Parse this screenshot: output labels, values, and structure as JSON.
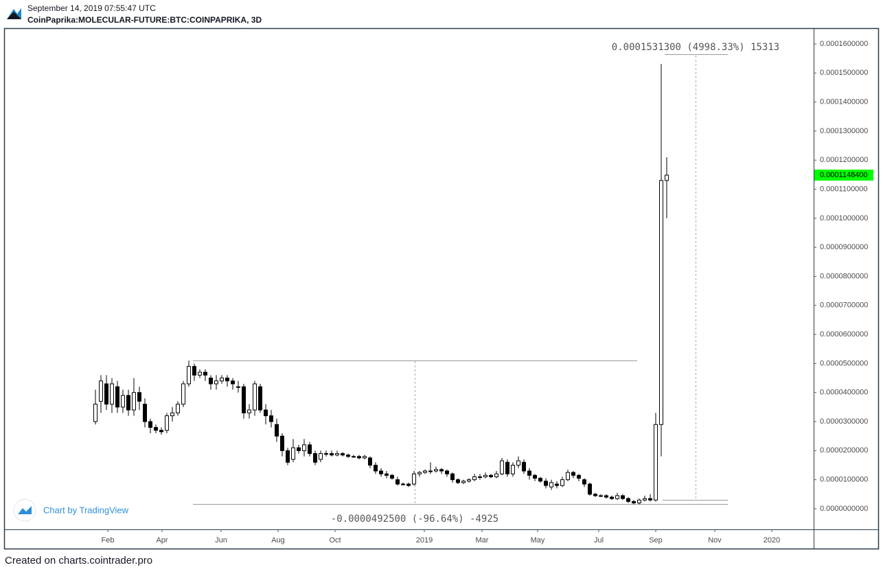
{
  "chart_data": {
    "type": "candlestick",
    "timestamp": "September 14, 2019 07:55:47 UTC",
    "title": "CoinPaprika:MOLECULAR-FUTURE:BTC:COINPAPRIKA, 3D",
    "branding": "Chart by TradingView",
    "footer": "Created on charts.cointrader.pro",
    "annotations": [
      "0.0001531300 (4998.33%) 15313",
      "-0.0000492500 (-96.64%) -4925"
    ],
    "up_color": "#ffffff",
    "down_color": "#000000",
    "last_price": {
      "value": 0.00011484,
      "label": "0.0001148400"
    },
    "last_price_color": "#00ff00",
    "open": [
      3e-05,
      3.7e-05,
      4.3e-05,
      3.6e-05,
      4.2e-05,
      3.5e-05,
      3.9e-05,
      3.4e-05,
      4e-05,
      3.6e-05,
      3e-05,
      2.8e-05,
      2.7e-05,
      2.7e-05,
      3.2e-05,
      3.3e-05,
      3.6e-05,
      4.3e-05,
      4.9e-05,
      4.6e-05,
      4.7e-05,
      4.5e-05,
      4.3e-05,
      4.4e-05,
      4.5e-05,
      4.4e-05,
      4.2e-05,
      4.2e-05,
      3.3e-05,
      3.4e-05,
      4.2e-05,
      3.4e-05,
      3.2e-05,
      2.9e-05,
      2.5e-05,
      2e-05,
      1.7e-05,
      2.1e-05,
      2e-05,
      2.2e-05,
      1.9e-05,
      1.7e-05,
      1.9e-05,
      1.9e-05,
      1.85e-05,
      1.9e-05,
      1.85e-05,
      1.8e-05,
      1.8e-05,
      1.75e-05,
      1.75e-05,
      1.5e-05,
      1.3e-05,
      1.2e-05,
      1.15e-05,
      1e-05,
      8.5e-06,
      8.5e-06,
      8.5e-06,
      1.2e-05,
      1.25e-05,
      1.3e-05,
      1.3e-05,
      1.35e-05,
      1.3e-05,
      1.2e-05,
      1e-05,
      9e-06,
      9.5e-06,
      1e-05,
      1.1e-05,
      1.1e-05,
      1.15e-05,
      1.1e-05,
      1.2e-05,
      1.6e-05,
      1.2e-05,
      1.5e-05,
      1.6e-05,
      1.3e-05,
      1.15e-05,
      1.05e-05,
      9.5e-06,
      7.5e-06,
      8.5e-06,
      8e-06,
      1e-05,
      1.25e-05,
      1.15e-05,
      1e-05,
      8.5e-06,
      5e-06,
      4.5e-06,
      4.5e-06,
      4e-06,
      3.5e-06,
      4.5e-06,
      3.5e-06,
      2.5e-06,
      2e-06,
      3e-06,
      3.5e-06,
      3e-06,
      2.9e-05,
      0.000113
    ],
    "high": [
      4.1e-05,
      4.6e-05,
      4.6e-05,
      4.5e-05,
      4.4e-05,
      4.1e-05,
      4.1e-05,
      4.5e-05,
      4.2e-05,
      3.8e-05,
      3.1e-05,
      2.9e-05,
      2.8e-05,
      3.3e-05,
      3.5e-05,
      3.7e-05,
      4.4e-05,
      5.1e-05,
      5e-05,
      4.8e-05,
      4.8e-05,
      4.6e-05,
      4.6e-05,
      4.6e-05,
      4.6e-05,
      4.5e-05,
      4.4e-05,
      4.3e-05,
      3.6e-05,
      4.4e-05,
      4.3e-05,
      3.6e-05,
      3.4e-05,
      3.1e-05,
      2.6e-05,
      2.1e-05,
      2.4e-05,
      2.2e-05,
      2.4e-05,
      2.3e-05,
      2e-05,
      2e-05,
      2e-05,
      2e-05,
      2e-05,
      1.95e-05,
      1.9e-05,
      1.85e-05,
      1.85e-05,
      1.85e-05,
      1.8e-05,
      1.6e-05,
      1.4e-05,
      1.3e-05,
      1.2e-05,
      1.1e-05,
      9e-06,
      9e-06,
      1.3e-05,
      1.3e-05,
      1.35e-05,
      1.6e-05,
      1.45e-05,
      1.4e-05,
      1.35e-05,
      1.25e-05,
      1.05e-05,
      1e-05,
      1.05e-05,
      1.2e-05,
      1.2e-05,
      1.25e-05,
      1.2e-05,
      1.3e-05,
      1.75e-05,
      1.7e-05,
      1.6e-05,
      1.8e-05,
      1.7e-05,
      1.4e-05,
      1.2e-05,
      1.1e-05,
      1.05e-05,
      1e-05,
      9.5e-06,
      1.1e-05,
      1.35e-05,
      1.3e-05,
      1.2e-05,
      1.05e-05,
      9e-06,
      5.5e-06,
      5e-06,
      5e-06,
      4.5e-06,
      5.5e-06,
      5e-06,
      4e-06,
      3e-06,
      3.5e-06,
      4.5e-06,
      5e-06,
      3.3e-05,
      0.00015313,
      0.000121
    ],
    "low": [
      2.9e-05,
      3.3e-05,
      3.4e-05,
      3.3e-05,
      3.3e-05,
      3.3e-05,
      3.2e-05,
      3.2e-05,
      3.4e-05,
      2.8e-05,
      2.6e-05,
      2.6e-05,
      2.55e-05,
      2.6e-05,
      3e-05,
      3.2e-05,
      3.5e-05,
      4.2e-05,
      4.4e-05,
      4.5e-05,
      4.4e-05,
      4.1e-05,
      4.1e-05,
      4.3e-05,
      4.2e-05,
      4.1e-05,
      4e-05,
      3.1e-05,
      3.1e-05,
      3.2e-05,
      3.3e-05,
      2.9e-05,
      2.8e-05,
      2.3e-05,
      1.8e-05,
      1.5e-05,
      1.6e-05,
      1.9e-05,
      1.8e-05,
      1.8e-05,
      1.5e-05,
      1.6e-05,
      1.8e-05,
      1.8e-05,
      1.8e-05,
      1.8e-05,
      1.75e-05,
      1.75e-05,
      1.7e-05,
      1.7e-05,
      1.4e-05,
      1.2e-05,
      1.1e-05,
      1.05e-05,
      1e-05,
      8e-06,
      8e-06,
      7.5e-06,
      8e-06,
      1.1e-05,
      1.2e-05,
      1.2e-05,
      1.25e-05,
      1.2e-05,
      1.1e-05,
      9e-06,
      8.5e-06,
      8.5e-06,
      9e-06,
      9.5e-06,
      1e-05,
      1.05e-05,
      1.05e-05,
      1.05e-05,
      1.15e-05,
      1.1e-05,
      1.1e-05,
      1.4e-05,
      1.2e-05,
      1e-05,
      9.5e-06,
      9e-06,
      7e-06,
      6.5e-06,
      7e-06,
      7.5e-06,
      9.5e-06,
      1.05e-05,
      9.5e-06,
      7.5e-06,
      4.5e-06,
      4e-06,
      4e-06,
      3.5e-06,
      3e-06,
      3e-06,
      3e-06,
      2e-06,
      1.5e-06,
      1.5e-06,
      2.5e-06,
      2.5e-06,
      2.5e-06,
      1.8e-05,
      0.0001
    ],
    "close": [
      3.6e-05,
      4.4e-05,
      3.6e-05,
      4.3e-05,
      3.5e-05,
      3.9e-05,
      3.4e-05,
      4e-05,
      3.7e-05,
      3e-05,
      2.8e-05,
      2.7e-05,
      2.65e-05,
      3.2e-05,
      3.3e-05,
      3.6e-05,
      4.3e-05,
      4.9e-05,
      4.6e-05,
      4.7e-05,
      4.6e-05,
      4.3e-05,
      4.4e-05,
      4.5e-05,
      4.4e-05,
      4.3e-05,
      4.2e-05,
      3.3e-05,
      3.4e-05,
      4.3e-05,
      3.4e-05,
      3.2e-05,
      3e-05,
      2.5e-05,
      2e-05,
      1.6e-05,
      2.1e-05,
      2e-05,
      2.2e-05,
      1.9e-05,
      1.6e-05,
      1.9e-05,
      1.9e-05,
      1.85e-05,
      1.9e-05,
      1.85e-05,
      1.8e-05,
      1.8e-05,
      1.75e-05,
      1.8e-05,
      1.5e-05,
      1.3e-05,
      1.2e-05,
      1.15e-05,
      1.05e-05,
      8.5e-06,
      8.5e-06,
      8e-06,
      1.2e-05,
      1.25e-05,
      1.3e-05,
      1.3e-05,
      1.35e-05,
      1.3e-05,
      1.2e-05,
      1e-05,
      9e-06,
      9.5e-06,
      1e-05,
      1.1e-05,
      1.1e-05,
      1.15e-05,
      1.1e-05,
      1.2e-05,
      1.65e-05,
      1.2e-05,
      1.5e-05,
      1.65e-05,
      1.3e-05,
      1.15e-05,
      1.05e-05,
      9.5e-06,
      8e-06,
      9e-06,
      8e-06,
      1e-05,
      1.25e-05,
      1.15e-05,
      1.05e-05,
      8.5e-06,
      5e-06,
      4.5e-06,
      4.5e-06,
      4e-06,
      3.5e-06,
      4.5e-06,
      3.5e-06,
      2.5e-06,
      2e-06,
      3e-06,
      3.5e-06,
      3e-06,
      2.9e-05,
      0.000113,
      0.00011484
    ],
    "xlim": [
      -16.5,
      130.75
    ],
    "xticks": [
      {
        "value": 2.25,
        "label": "Feb"
      },
      {
        "value": 12.125,
        "label": "Apr"
      },
      {
        "value": 22.875,
        "label": "Jun"
      },
      {
        "value": 33.25,
        "label": "Aug"
      },
      {
        "value": 43.625,
        "label": "Oct"
      },
      {
        "value": 59.875,
        "label": "2019"
      },
      {
        "value": 70.375,
        "label": "Mar"
      },
      {
        "value": 80.5,
        "label": "May"
      },
      {
        "value": 91.625,
        "label": "Jul"
      },
      {
        "value": 102,
        "label": "Sep"
      },
      {
        "value": 112.75,
        "label": "Nov"
      },
      {
        "value": 123.125,
        "label": "2020"
      }
    ],
    "ylim": [
      -7.1e-06,
      0.0001652
    ],
    "yticks": [
      {
        "value": 0,
        "label": "0.0000000000"
      },
      {
        "value": 1e-05,
        "label": "0.0000100000"
      },
      {
        "value": 2e-05,
        "label": "0.0000200000"
      },
      {
        "value": 3e-05,
        "label": "0.0000300000"
      },
      {
        "value": 4e-05,
        "label": "0.0000400000"
      },
      {
        "value": 5e-05,
        "label": "0.0000500000"
      },
      {
        "value": 6e-05,
        "label": "0.0000600000"
      },
      {
        "value": 7e-05,
        "label": "0.0000700000"
      },
      {
        "value": 8e-05,
        "label": "0.0000800000"
      },
      {
        "value": 9e-05,
        "label": "0.0000900000"
      },
      {
        "value": 0.0001,
        "label": "0.0001000000"
      },
      {
        "value": 0.00011,
        "label": "0.0001100000"
      },
      {
        "value": 0.00012,
        "label": "0.0001200000"
      },
      {
        "value": 0.00013,
        "label": "0.0001300000"
      },
      {
        "value": 0.00014,
        "label": "0.0001400000"
      },
      {
        "value": 0.00015,
        "label": "0.0001500000"
      },
      {
        "value": 0.00016,
        "label": "0.0001600000"
      }
    ],
    "grid": false
  }
}
